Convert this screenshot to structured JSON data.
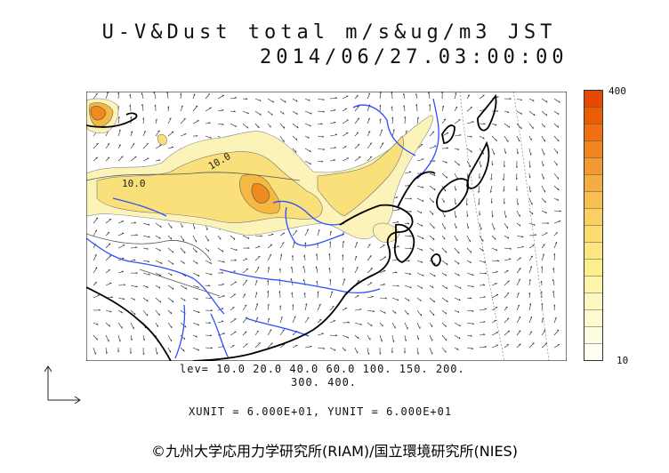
{
  "title": {
    "line1": "U-V&Dust total m/s&ug/m3 JST",
    "line2": "2014/06/27.03:00:00"
  },
  "colorbar": {
    "max_label": "400",
    "min_label": "10",
    "colors": [
      "#e84800",
      "#ec5c00",
      "#f07010",
      "#f28420",
      "#f49830",
      "#f6ac40",
      "#f8c050",
      "#fad060",
      "#fbdc70",
      "#fce680",
      "#fdee90",
      "#fdf4a8",
      "#fef8c0",
      "#fefad0",
      "#fefce0",
      "#fffef0"
    ]
  },
  "levels": {
    "line1": "lev= 10.0 20.0 40.0 60.0 100. 150. 200.",
    "line2": "300. 400."
  },
  "units_line": "XUNIT = 6.000E+01, YUNIT = 6.000E+01",
  "copyright": "©九州大学応用力学研究所(RIAM)/国立環境研究所(NIES)",
  "contour_labels": [
    "10.0",
    "10.0"
  ],
  "map_colors": {
    "dust_light": "#fcf3b8",
    "dust_mid": "#f9e07a",
    "dust_high": "#f5b840",
    "dust_peak": "#ee8a20",
    "coast": "#000000",
    "river": "#2a4fff",
    "border": "#555555"
  },
  "icons": [
    "axis-indicator-icon"
  ]
}
